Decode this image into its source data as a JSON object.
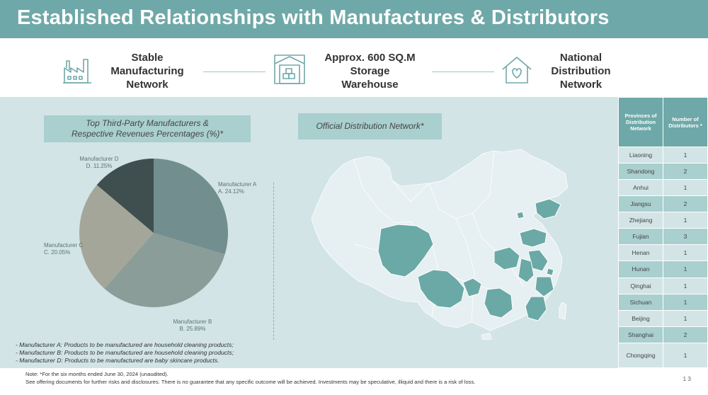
{
  "header": {
    "title": "Established Relationships with Manufactures & Distributors"
  },
  "features": [
    {
      "icon": "factory-icon",
      "lines": [
        "Stable",
        "Manufacturing",
        "Network"
      ]
    },
    {
      "icon": "warehouse-icon",
      "lines": [
        "Approx. 600 SQ.M",
        "Storage",
        "Warehouse"
      ]
    },
    {
      "icon": "house-heart-icon",
      "lines": [
        "National",
        "Distribution",
        "Network"
      ]
    }
  ],
  "pie_section": {
    "title_lines": [
      "Top Third-Party Manufacturers &",
      "Respective Revenues Percentages (%)*"
    ]
  },
  "chart_data": {
    "type": "pie",
    "title": "Top Third-Party Manufacturers & Respective Revenues Percentages (%)*",
    "slices": [
      {
        "name": "Manufacturer A",
        "value": 24.12,
        "label": "24.12%",
        "color": "#728e8e"
      },
      {
        "name": "Manufacturer B",
        "value": 25.89,
        "label": "25.89%",
        "color": "#8a9d98"
      },
      {
        "name": "Manufacturer C",
        "value": 20.05,
        "label": "20.05%",
        "color": "#a3a699"
      },
      {
        "name": "Manufacturer D",
        "value": 11.25,
        "label": "11.25%",
        "color": "#3f4f4f"
      }
    ]
  },
  "map_section": {
    "title": "Official Distribution Network*"
  },
  "notes": [
    "-   Manufacturer A: Products to be manufactured are household cleaning products;",
    "-   Manufacturer B: Products to be manufactured are household cleaning products;",
    "-   Manufacturer D: Products to be manufactured are baby skincare products."
  ],
  "table": {
    "headers": [
      "Provinces of Distribution Network",
      "Number of Distributors *"
    ],
    "rows": [
      {
        "province": "Liaoning",
        "count": "1"
      },
      {
        "province": "Shandong",
        "count": "2"
      },
      {
        "province": "Anhui",
        "count": "1"
      },
      {
        "province": "Jiangsu",
        "count": "2"
      },
      {
        "province": "Zhejiang",
        "count": "1"
      },
      {
        "province": "Fujian",
        "count": "3"
      },
      {
        "province": "Henan",
        "count": "1"
      },
      {
        "province": "Hunan",
        "count": "1"
      },
      {
        "province": "Qinghai",
        "count": "1"
      },
      {
        "province": "Sichuan",
        "count": "1"
      },
      {
        "province": "Beijing",
        "count": "1"
      },
      {
        "province": "Shanghai",
        "count": "2"
      },
      {
        "province": "Chongqing",
        "count": "1"
      }
    ]
  },
  "footer": {
    "line1": "Note: *For the six months ended June 30, 2024 (unaudited).",
    "line2": "See offering documents for further risks and disclosures. There is no guarantee that any specific outcome will be achieved. Investments may be speculative, illiquid and there is a risk of loss.",
    "page": "13"
  },
  "colors": {
    "teal": "#6fa8a8",
    "light_teal": "#a9cfcf",
    "pale": "#d2e4e6",
    "map_highlight": "#6aa9a6",
    "map_base": "#e6eff1"
  }
}
